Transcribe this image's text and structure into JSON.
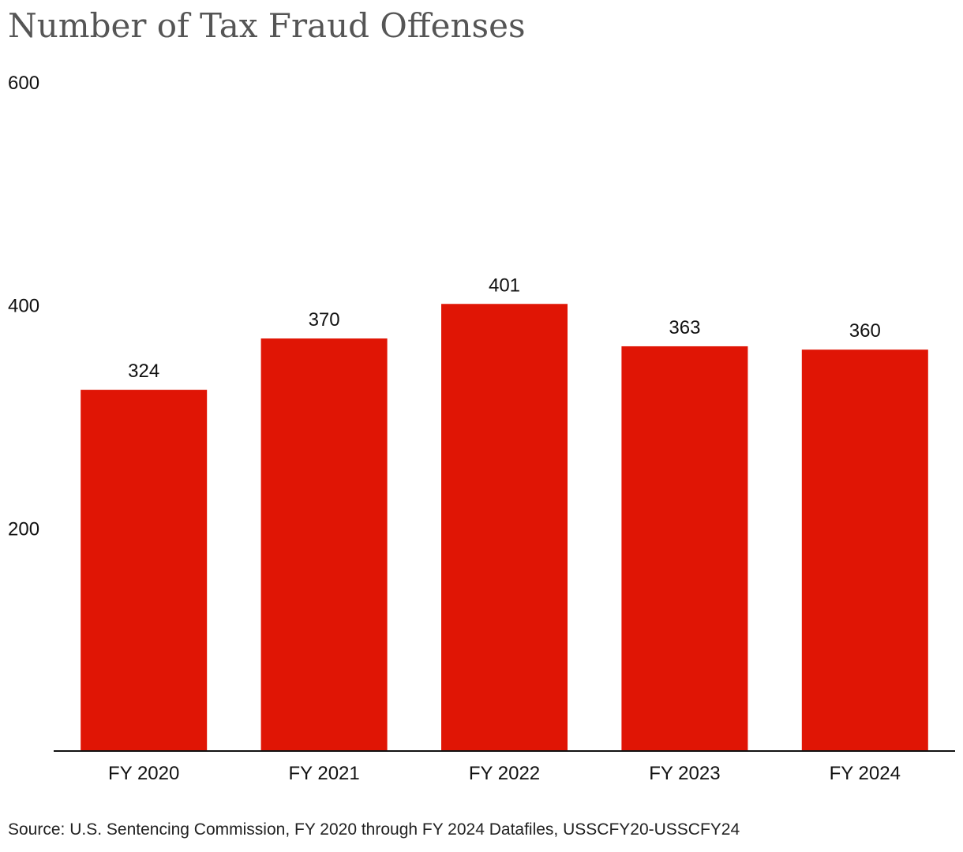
{
  "chart_data": {
    "type": "bar",
    "title": "Number of Tax Fraud Offenses",
    "categories": [
      "FY 2020",
      "FY 2021",
      "FY 2022",
      "FY 2023",
      "FY 2024"
    ],
    "values": [
      324,
      370,
      401,
      363,
      360
    ],
    "value_labels": [
      "324",
      "370",
      "401",
      "363",
      "360"
    ],
    "ylim": [
      0,
      600
    ],
    "yticks": [
      200,
      400,
      600
    ],
    "ytick_labels": [
      "200",
      "400",
      "600"
    ],
    "grid": false,
    "legend": "none",
    "bar_color": "#e01505",
    "source": "Source: U.S. Sentencing Commission, FY 2020 through FY 2024 Datafiles, USSCFY20-USSCFY24"
  }
}
